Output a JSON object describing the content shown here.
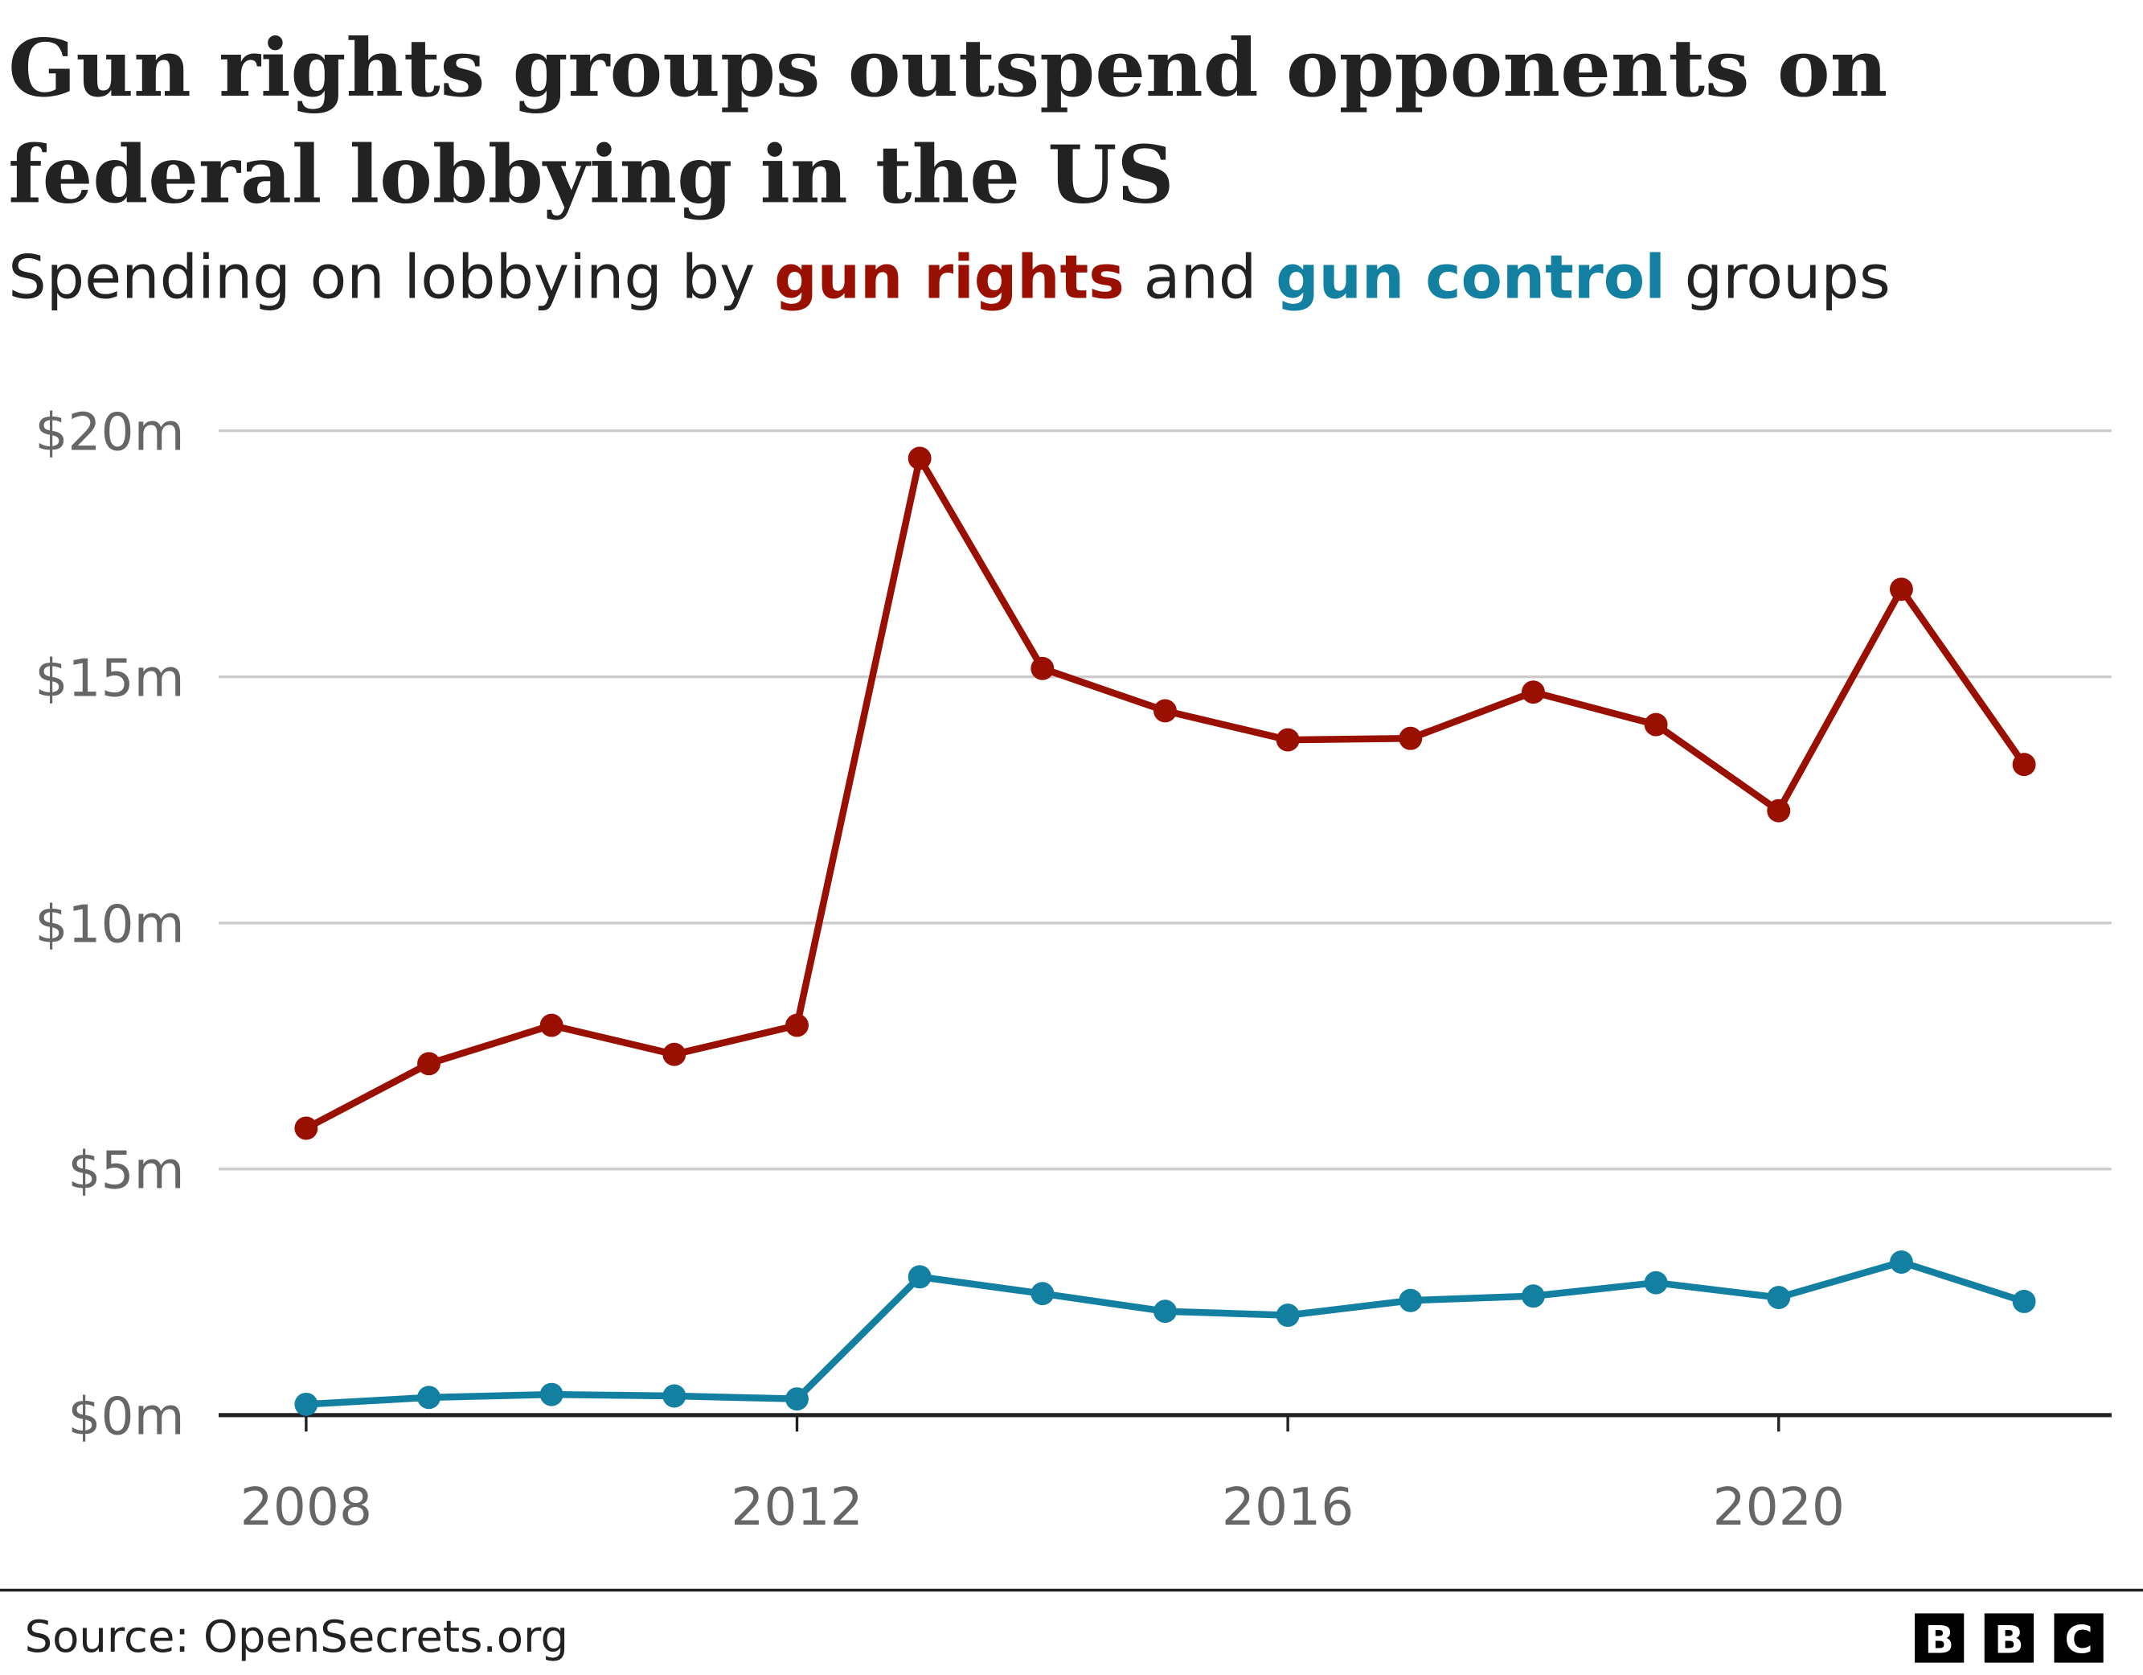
{
  "chart_data": {
    "type": "line",
    "title": [
      "Gun rights groups outspend opponents on",
      "federal lobbying in the US"
    ],
    "subtitle": {
      "prefix": "Spending on lobbying by ",
      "series1": "gun rights",
      "middle": " and ",
      "series2": "gun control",
      "suffix": " groups"
    },
    "x": [
      2008,
      2009,
      2010,
      2011,
      2012,
      2013,
      2014,
      2015,
      2016,
      2017,
      2018,
      2019,
      2020,
      2021,
      2022
    ],
    "series": [
      {
        "name": "gun rights",
        "color": "#990f00",
        "values": [
          5.83,
          7.14,
          7.92,
          7.33,
          7.92,
          19.44,
          15.17,
          14.31,
          13.72,
          13.75,
          14.69,
          14.03,
          12.28,
          16.78,
          13.22
        ]
      },
      {
        "name": "gun control",
        "color": "#1380a1",
        "values": [
          0.22,
          0.36,
          0.42,
          0.39,
          0.33,
          2.81,
          2.47,
          2.11,
          2.03,
          2.33,
          2.42,
          2.69,
          2.39,
          3.11,
          2.31
        ]
      }
    ],
    "ylim": [
      0,
      20
    ],
    "yticks": [
      0,
      5,
      10,
      15,
      20
    ],
    "ytick_labels": [
      "$0m",
      "$5m",
      "$10m",
      "$15m",
      "$20m"
    ],
    "xticks": [
      2008,
      2012,
      2016,
      2020
    ],
    "xtick_labels": [
      "2008",
      "2012",
      "2016",
      "2020"
    ],
    "grid": true,
    "legend": "none (series named in subtitle)"
  },
  "footer": {
    "source": "Source: OpenSecrets.org",
    "logo": [
      "B",
      "B",
      "C"
    ]
  }
}
